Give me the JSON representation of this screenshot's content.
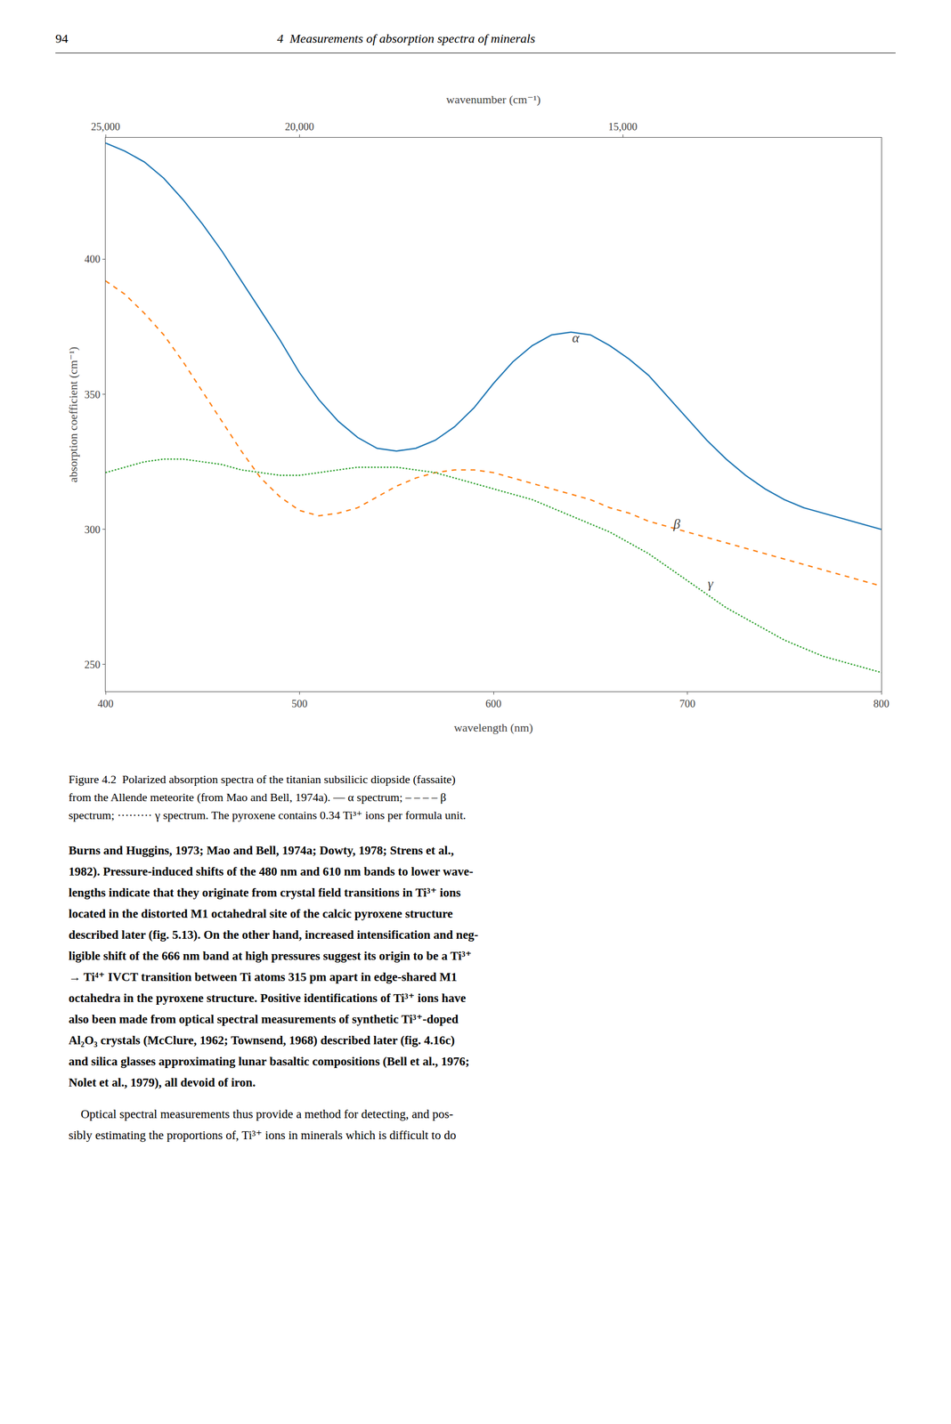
{
  "chart_data": {
    "type": "line",
    "xlabel": "wavelength (nm)",
    "ylabel": "absorption coefficient (cm⁻¹)",
    "x2label": "wavenumber (cm⁻¹)",
    "x": [
      400,
      410,
      420,
      430,
      440,
      450,
      460,
      470,
      480,
      490,
      500,
      510,
      520,
      530,
      540,
      550,
      560,
      570,
      580,
      590,
      600,
      610,
      620,
      630,
      640,
      650,
      660,
      670,
      680,
      690,
      700,
      710,
      720,
      730,
      740,
      750,
      760,
      770,
      780,
      790,
      800
    ],
    "series": [
      {
        "name": "α",
        "line_style": "solid",
        "label_position": [
          640,
          371
        ],
        "values": [
          443,
          440,
          436,
          430,
          422,
          413,
          403,
          392,
          381,
          370,
          358,
          348,
          340,
          334,
          330,
          329,
          330,
          333,
          338,
          345,
          354,
          362,
          368,
          372,
          373,
          372,
          368,
          363,
          357,
          349,
          341,
          333,
          326,
          320,
          315,
          311,
          308,
          306,
          304,
          302,
          300
        ]
      },
      {
        "name": "β",
        "line_style": "dashed",
        "label_position": [
          692,
          302
        ],
        "values": [
          392,
          387,
          380,
          372,
          362,
          351,
          340,
          329,
          319,
          312,
          307,
          305,
          306,
          308,
          312,
          316,
          319,
          321,
          322,
          322,
          321,
          319,
          317,
          315,
          313,
          311,
          308,
          306,
          303,
          301,
          299,
          297,
          295,
          293,
          291,
          289,
          287,
          285,
          283,
          281,
          279
        ]
      },
      {
        "name": "γ",
        "line_style": "dotted",
        "label_position": [
          710,
          280
        ],
        "values": [
          321,
          323,
          325,
          326,
          326,
          325,
          324,
          322,
          321,
          320,
          320,
          321,
          322,
          323,
          323,
          323,
          322,
          321,
          319,
          317,
          315,
          313,
          311,
          308,
          305,
          302,
          299,
          295,
          291,
          286,
          281,
          276,
          271,
          267,
          263,
          259,
          256,
          253,
          251,
          249,
          247
        ]
      }
    ],
    "xlim": [
      400,
      800
    ],
    "ylim": [
      240,
      445
    ],
    "xticks": [
      400,
      500,
      600,
      700,
      800
    ],
    "yticks": [
      250,
      300,
      350,
      400
    ],
    "x2lim": [
      400,
      800
    ],
    "x2ticks": [
      {
        "value": 400,
        "label": "25,000"
      },
      {
        "value": 500,
        "label": "20,000"
      },
      {
        "value": 666.6666666666666,
        "label": "15,000"
      }
    ],
    "grid": false
  },
  "page_number": "94",
  "header": "4  Measurements of absorption spectra of minerals",
  "caption": [
    "Figure 4.2  Polarized absorption spectra of the titanian subsilicic diopside (fassaite)",
    "from the Allende meteorite (from Mao and Bell, 1974a). — α spectrum; – – – – β",
    "spectrum; ········· γ spectrum. The pyroxene contains 0.34 Ti³⁺ ions per formula unit."
  ],
  "bold_lines": [
    "Burns and Huggins, 1973; Mao and Bell, 1974a; Dowty, 1978; Strens et al.,",
    "1982). Pressure-induced shifts of the 480 nm and 610 nm bands to lower wave-",
    "lengths indicate that they originate from crystal field transitions in Ti³⁺ ions",
    "located in the distorted M1 octahedral site of the calcic pyroxene structure",
    "described later (fig. 5.13). On the other hand, increased intensification and neg-",
    "ligible shift of the 666 nm band at high pressures suggest its origin to be a Ti³⁺",
    "→ Ti⁴⁺ IVCT transition between Ti atoms 315 pm apart in edge-shared M1",
    "octahedra in the pyroxene structure. Positive identifications of Ti³⁺ ions have",
    "also been made from optical spectral measurements of synthetic Ti³⁺-doped",
    "Al₂O₃ crystals (McClure, 1962; Townsend, 1968) described later (fig. 4.16c)",
    "and silica glasses approximating lunar basaltic compositions (Bell et al., 1976;",
    "Nolet et al., 1979), all devoid of iron."
  ],
  "regular_lines": [
    "    Optical spectral measurements thus provide a method for detecting, and pos-",
    "sibly estimating the proportions of, Ti³⁺ ions in minerals which is difficult to do"
  ]
}
